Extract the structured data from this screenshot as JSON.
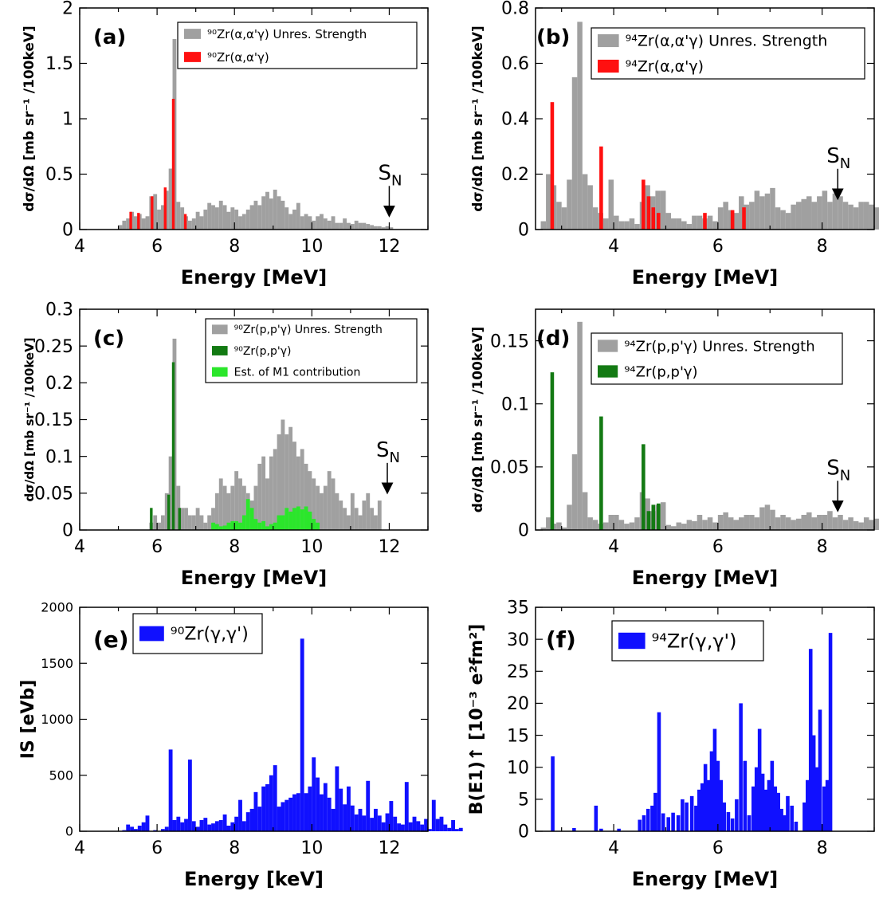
{
  "colors": {
    "gray": "#a0a0a0",
    "red": "#ff1010",
    "darkgreen": "#137a13",
    "lightgreen": "#2be62b",
    "blue": "#1010ff"
  },
  "chart_data": [
    {
      "panel": "(a)",
      "type": "bar",
      "xlabel": "Energy [MeV]",
      "ylabel": "dσ/dΩ [mb sr⁻¹ /100keV]",
      "xlim": [
        4,
        13
      ],
      "ylim": [
        0,
        2
      ],
      "xticks": [
        4,
        6,
        8,
        10,
        12
      ],
      "yticks": [
        0,
        0.5,
        1,
        1.5,
        2
      ],
      "ytick_labels": [
        "0",
        "0.5",
        "1",
        "1.5",
        "2"
      ],
      "bin_width": 0.1,
      "legend": [
        "⁹⁰Zr(α,α'γ) Unres. Strength",
        "⁹⁰Zr(α,α'γ)"
      ],
      "sn": {
        "label": "S",
        "sub": "N",
        "x": 12.0,
        "y": 0.12
      },
      "series": [
        {
          "name": "⁹⁰Zr(α,α'γ) Unres. Strength",
          "color": "gray",
          "x0": 5.0,
          "values": [
            0.04,
            0.08,
            0.1,
            0.16,
            0.12,
            0.14,
            0.1,
            0.12,
            0.3,
            0.32,
            0.18,
            0.22,
            0.35,
            0.55,
            1.72,
            0.25,
            0.2,
            0.12,
            0.08,
            0.1,
            0.16,
            0.12,
            0.18,
            0.24,
            0.22,
            0.2,
            0.26,
            0.22,
            0.16,
            0.2,
            0.18,
            0.12,
            0.14,
            0.18,
            0.22,
            0.26,
            0.22,
            0.3,
            0.34,
            0.28,
            0.36,
            0.3,
            0.26,
            0.2,
            0.14,
            0.18,
            0.24,
            0.12,
            0.14,
            0.12,
            0.08,
            0.12,
            0.14,
            0.1,
            0.08,
            0.12,
            0.06,
            0.06,
            0.1,
            0.06,
            0.05,
            0.08,
            0.06,
            0.06,
            0.05,
            0.04,
            0.03,
            0.03,
            0.02,
            0.03,
            0.02
          ]
        },
        {
          "name": "⁹⁰Zr(α,α'γ)",
          "color": "red",
          "bars": [
            [
              5.32,
              0.16
            ],
            [
              5.52,
              0.15
            ],
            [
              5.87,
              0.3
            ],
            [
              6.21,
              0.38
            ],
            [
              6.42,
              1.18
            ],
            [
              6.73,
              0.14
            ]
          ]
        }
      ]
    },
    {
      "panel": "(b)",
      "type": "bar",
      "xlabel": "Energy [MeV]",
      "ylabel": "dσ/dΩ [mb sr⁻¹ /100keV]",
      "xlim": [
        2.5,
        9
      ],
      "ylim": [
        0,
        0.8
      ],
      "xticks": [
        4,
        6,
        8
      ],
      "yticks": [
        0,
        0.2,
        0.4,
        0.6,
        0.8
      ],
      "ytick_labels": [
        "0",
        "0.2",
        "0.4",
        "0.6",
        "0.8"
      ],
      "bin_width": 0.1,
      "legend": [
        "⁹⁴Zr(α,α'γ) Unres. Strength",
        "⁹⁴Zr(α,α'γ)"
      ],
      "sn": {
        "label": "S",
        "sub": "N",
        "x": 8.3,
        "y": 0.11
      },
      "series": [
        {
          "name": "⁹⁴Zr(α,α'γ) Unres. Strength",
          "color": "gray",
          "x0": 2.6,
          "values": [
            0.03,
            0.2,
            0.16,
            0.1,
            0.08,
            0.18,
            0.55,
            0.75,
            0.2,
            0.16,
            0.08,
            0.06,
            0.04,
            0.18,
            0.05,
            0.03,
            0.03,
            0.04,
            0.02,
            0.1,
            0.16,
            0.12,
            0.14,
            0.14,
            0.06,
            0.04,
            0.04,
            0.03,
            0.02,
            0.05,
            0.05,
            0.04,
            0.05,
            0.03,
            0.08,
            0.1,
            0.07,
            0.06,
            0.12,
            0.09,
            0.1,
            0.14,
            0.12,
            0.13,
            0.15,
            0.08,
            0.07,
            0.06,
            0.09,
            0.1,
            0.11,
            0.12,
            0.1,
            0.12,
            0.14,
            0.1,
            0.13,
            0.12,
            0.1,
            0.09,
            0.08,
            0.1,
            0.1,
            0.09,
            0.08,
            0.09,
            0.08,
            0.04,
            0.03,
            0.02,
            0.03
          ]
        },
        {
          "name": "⁹⁴Zr(α,α'γ)",
          "color": "red",
          "bars": [
            [
              2.82,
              0.46
            ],
            [
              3.76,
              0.3
            ],
            [
              4.57,
              0.18
            ],
            [
              4.67,
              0.12
            ],
            [
              4.76,
              0.08
            ],
            [
              4.86,
              0.06
            ],
            [
              5.75,
              0.06
            ],
            [
              6.28,
              0.07
            ],
            [
              6.5,
              0.08
            ]
          ]
        }
      ]
    },
    {
      "panel": "(c)",
      "type": "bar",
      "xlabel": "Energy [MeV]",
      "ylabel": "dσ/dΩ [mb sr⁻¹ /100keV]",
      "xlim": [
        4,
        13
      ],
      "ylim": [
        0,
        0.3
      ],
      "xticks": [
        4,
        6,
        8,
        10,
        12
      ],
      "yticks": [
        0,
        0.05,
        0.1,
        0.15,
        0.2,
        0.25,
        0.3
      ],
      "ytick_labels": [
        "0",
        "0.05",
        "0.1",
        "0.15",
        "0.2",
        "0.25",
        "0.3"
      ],
      "bin_width": 0.1,
      "legend": [
        "⁹⁰Zr(p,p'γ) Unres. Strength",
        "⁹⁰Zr(p,p'γ)",
        "Est. of M1 contribution"
      ],
      "sn": {
        "label": "S",
        "sub": "N",
        "x": 11.95,
        "y": 0.05
      },
      "series": [
        {
          "name": "⁹⁰Zr(p,p'γ) Unres. Strength",
          "color": "gray",
          "x0": 5.8,
          "values": [
            0.01,
            0.02,
            0.01,
            0.02,
            0.05,
            0.1,
            0.26,
            0.06,
            0.03,
            0.03,
            0.02,
            0.02,
            0.03,
            0.02,
            0.01,
            0.02,
            0.03,
            0.05,
            0.07,
            0.06,
            0.05,
            0.06,
            0.08,
            0.07,
            0.06,
            0.05,
            0.04,
            0.06,
            0.09,
            0.1,
            0.07,
            0.1,
            0.11,
            0.13,
            0.15,
            0.13,
            0.14,
            0.12,
            0.1,
            0.11,
            0.09,
            0.08,
            0.07,
            0.06,
            0.05,
            0.06,
            0.08,
            0.07,
            0.05,
            0.04,
            0.03,
            0.02,
            0.05,
            0.03,
            0.02,
            0.04,
            0.05,
            0.03,
            0.02,
            0.04
          ]
        },
        {
          "name": "⁹⁰Zr(p,p'γ)",
          "color": "darkgreen",
          "bars": [
            [
              5.85,
              0.03
            ],
            [
              6.3,
              0.048
            ],
            [
              6.42,
              0.228
            ],
            [
              6.58,
              0.03
            ]
          ]
        },
        {
          "name": "Est. of M1 contribution",
          "color": "lightgreen",
          "x0": 7.4,
          "values": [
            0.01,
            0.008,
            0.005,
            0.006,
            0.01,
            0.012,
            0.012,
            0.01,
            0.02,
            0.042,
            0.03,
            0.015,
            0.01,
            0.012,
            0.005,
            0.008,
            0.01,
            0.02,
            0.02,
            0.03,
            0.025,
            0.03,
            0.032,
            0.028,
            0.032,
            0.025,
            0.015,
            0.01
          ]
        }
      ]
    },
    {
      "panel": "(d)",
      "type": "bar",
      "xlabel": "Energy [MeV]",
      "ylabel": "dσ/dΩ [mb sr⁻¹ /100keV]",
      "xlim": [
        2.5,
        9
      ],
      "ylim": [
        0,
        0.175
      ],
      "xticks": [
        4,
        6,
        8
      ],
      "yticks": [
        0,
        0.05,
        0.1,
        0.15
      ],
      "ytick_labels": [
        "0",
        "0.05",
        "0.1",
        "0.15"
      ],
      "bin_width": 0.1,
      "legend": [
        "⁹⁴Zr(p,p'γ) Unres. Strength",
        "⁹⁴Zr(p,p'γ)"
      ],
      "sn": {
        "label": "S",
        "sub": "N",
        "x": 8.3,
        "y": 0.015
      },
      "series": [
        {
          "name": "⁹⁴Zr(p,p'γ) Unres. Strength",
          "color": "gray",
          "x0": 2.6,
          "values": [
            0.002,
            0.01,
            0.005,
            0.006,
            0.002,
            0.02,
            0.06,
            0.165,
            0.03,
            0.01,
            0.008,
            0.005,
            0.006,
            0.012,
            0.012,
            0.008,
            0.005,
            0.006,
            0.01,
            0.03,
            0.025,
            0.015,
            0.02,
            0.022,
            0.004,
            0.003,
            0.006,
            0.005,
            0.008,
            0.007,
            0.012,
            0.008,
            0.01,
            0.006,
            0.012,
            0.014,
            0.01,
            0.008,
            0.01,
            0.012,
            0.012,
            0.01,
            0.018,
            0.02,
            0.016,
            0.01,
            0.012,
            0.01,
            0.008,
            0.009,
            0.012,
            0.014,
            0.01,
            0.012,
            0.012,
            0.015,
            0.01,
            0.012,
            0.008,
            0.01,
            0.007,
            0.006,
            0.01,
            0.008,
            0.009,
            0.008,
            0.006,
            0.006,
            0.004,
            0.003,
            0.002
          ]
        },
        {
          "name": "⁹⁴Zr(p,p'γ)",
          "color": "darkgreen",
          "bars": [
            [
              2.82,
              0.125
            ],
            [
              3.76,
              0.09
            ],
            [
              4.57,
              0.068
            ],
            [
              4.67,
              0.015
            ],
            [
              4.76,
              0.02
            ],
            [
              4.86,
              0.021
            ]
          ]
        }
      ]
    },
    {
      "panel": "(e)",
      "type": "bar",
      "xlabel": "Energy [keV]",
      "ylabel": "IS [eVb]",
      "xlim": [
        4,
        13
      ],
      "ylim": [
        0,
        2000
      ],
      "xticks": [
        4,
        6,
        8,
        10,
        12
      ],
      "yticks": [
        0,
        500,
        1000,
        1500,
        2000
      ],
      "ytick_labels": [
        "0",
        "500",
        "1000",
        "1500",
        "2000"
      ],
      "bin_width": 0.1,
      "legend": [
        "⁹⁰Zr(γ,γ')"
      ],
      "series": [
        {
          "name": "⁹⁰Zr(γ,γ')",
          "color": "blue",
          "x0": 5.1,
          "values": [
            10,
            60,
            40,
            20,
            50,
            80,
            140,
            0,
            10,
            0,
            20,
            40,
            730,
            100,
            130,
            80,
            110,
            640,
            90,
            40,
            100,
            120,
            60,
            70,
            90,
            100,
            150,
            50,
            80,
            130,
            280,
            90,
            170,
            200,
            350,
            220,
            400,
            420,
            500,
            590,
            220,
            260,
            280,
            300,
            330,
            340,
            1720,
            340,
            400,
            660,
            480,
            330,
            430,
            300,
            200,
            580,
            380,
            240,
            400,
            230,
            150,
            200,
            140,
            450,
            120,
            200,
            140,
            80,
            160,
            270,
            130,
            70,
            60,
            440,
            80,
            130,
            90,
            60,
            110,
            20,
            280,
            110,
            130,
            60,
            30,
            100,
            20,
            30
          ]
        }
      ]
    },
    {
      "panel": "(f)",
      "type": "bar",
      "xlabel": "Energy [MeV]",
      "ylabel": "B(E1)↑ [10⁻³ e²fm²]",
      "xlim": [
        2.5,
        9
      ],
      "ylim": [
        0,
        35
      ],
      "xticks": [
        4,
        6,
        8
      ],
      "yticks": [
        0,
        5,
        10,
        15,
        20,
        25,
        30,
        35
      ],
      "ytick_labels": [
        "0",
        "5",
        "10",
        "15",
        "20",
        "25",
        "30",
        "35"
      ],
      "bin_width": 0.1,
      "legend": [
        "⁹⁴Zr(γ,γ')"
      ],
      "series": [
        {
          "name": "⁹⁴Zr(γ,γ')",
          "color": "blue",
          "bars": [
            [
              2.83,
              11.7
            ],
            [
              3.24,
              0.5
            ],
            [
              3.66,
              4.0
            ],
            [
              3.76,
              0.4
            ],
            [
              4.1,
              0.4
            ],
            [
              4.5,
              1.8
            ],
            [
              4.58,
              2.5
            ],
            [
              4.66,
              3.5
            ],
            [
              4.74,
              4.0
            ],
            [
              4.8,
              6.0
            ],
            [
              4.87,
              18.6
            ],
            [
              4.95,
              2.8
            ],
            [
              5.05,
              2.2
            ],
            [
              5.14,
              2.9
            ],
            [
              5.24,
              2.5
            ],
            [
              5.32,
              5.0
            ],
            [
              5.4,
              4.5
            ],
            [
              5.5,
              5.5
            ],
            [
              5.58,
              4.0
            ],
            [
              5.64,
              6.5
            ],
            [
              5.7,
              7.5
            ],
            [
              5.76,
              10.5
            ],
            [
              5.82,
              8.0
            ],
            [
              5.88,
              12.5
            ],
            [
              5.94,
              16.0
            ],
            [
              6.0,
              11.0
            ],
            [
              6.06,
              8.0
            ],
            [
              6.12,
              4.5
            ],
            [
              6.2,
              3.0
            ],
            [
              6.28,
              2.0
            ],
            [
              6.36,
              5.0
            ],
            [
              6.44,
              20.0
            ],
            [
              6.52,
              11.0
            ],
            [
              6.6,
              2.5
            ],
            [
              6.68,
              7.0
            ],
            [
              6.74,
              10.0
            ],
            [
              6.8,
              16.0
            ],
            [
              6.86,
              9.0
            ],
            [
              6.92,
              6.5
            ],
            [
              6.98,
              8.0
            ],
            [
              7.04,
              11.0
            ],
            [
              7.1,
              7.0
            ],
            [
              7.16,
              6.0
            ],
            [
              7.22,
              3.5
            ],
            [
              7.28,
              2.5
            ],
            [
              7.34,
              5.5
            ],
            [
              7.42,
              4.0
            ],
            [
              7.5,
              1.5
            ],
            [
              7.66,
              4.5
            ],
            [
              7.72,
              8.0
            ],
            [
              7.78,
              28.5
            ],
            [
              7.84,
              15.0
            ],
            [
              7.9,
              10.0
            ],
            [
              7.96,
              19.0
            ],
            [
              8.04,
              7.0
            ],
            [
              8.1,
              8.0
            ],
            [
              8.16,
              31.0
            ]
          ]
        }
      ]
    }
  ]
}
